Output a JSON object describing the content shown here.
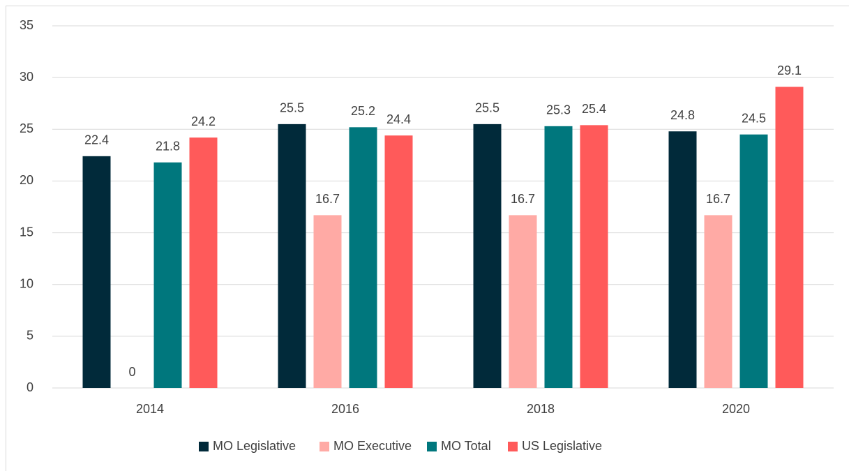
{
  "chart_data": {
    "type": "bar",
    "categories": [
      "2014",
      "2016",
      "2018",
      "2020"
    ],
    "series": [
      {
        "name": "MO Legislative",
        "color": "#012a3a",
        "values": [
          22.4,
          25.5,
          25.5,
          24.8
        ]
      },
      {
        "name": "MO Executive",
        "color": "#ffaaa5",
        "values": [
          0,
          16.7,
          16.7,
          16.7
        ]
      },
      {
        "name": "MO Total",
        "color": "#00777d",
        "values": [
          21.8,
          25.2,
          25.3,
          24.5
        ]
      },
      {
        "name": "US Legislative",
        "color": "#ff5a5a",
        "values": [
          24.2,
          24.4,
          25.4,
          29.1
        ]
      }
    ],
    "ylim": [
      0,
      35
    ],
    "yticks": [
      0,
      5,
      10,
      15,
      20,
      25,
      30,
      35
    ],
    "grid": true,
    "legend": "bottom"
  }
}
